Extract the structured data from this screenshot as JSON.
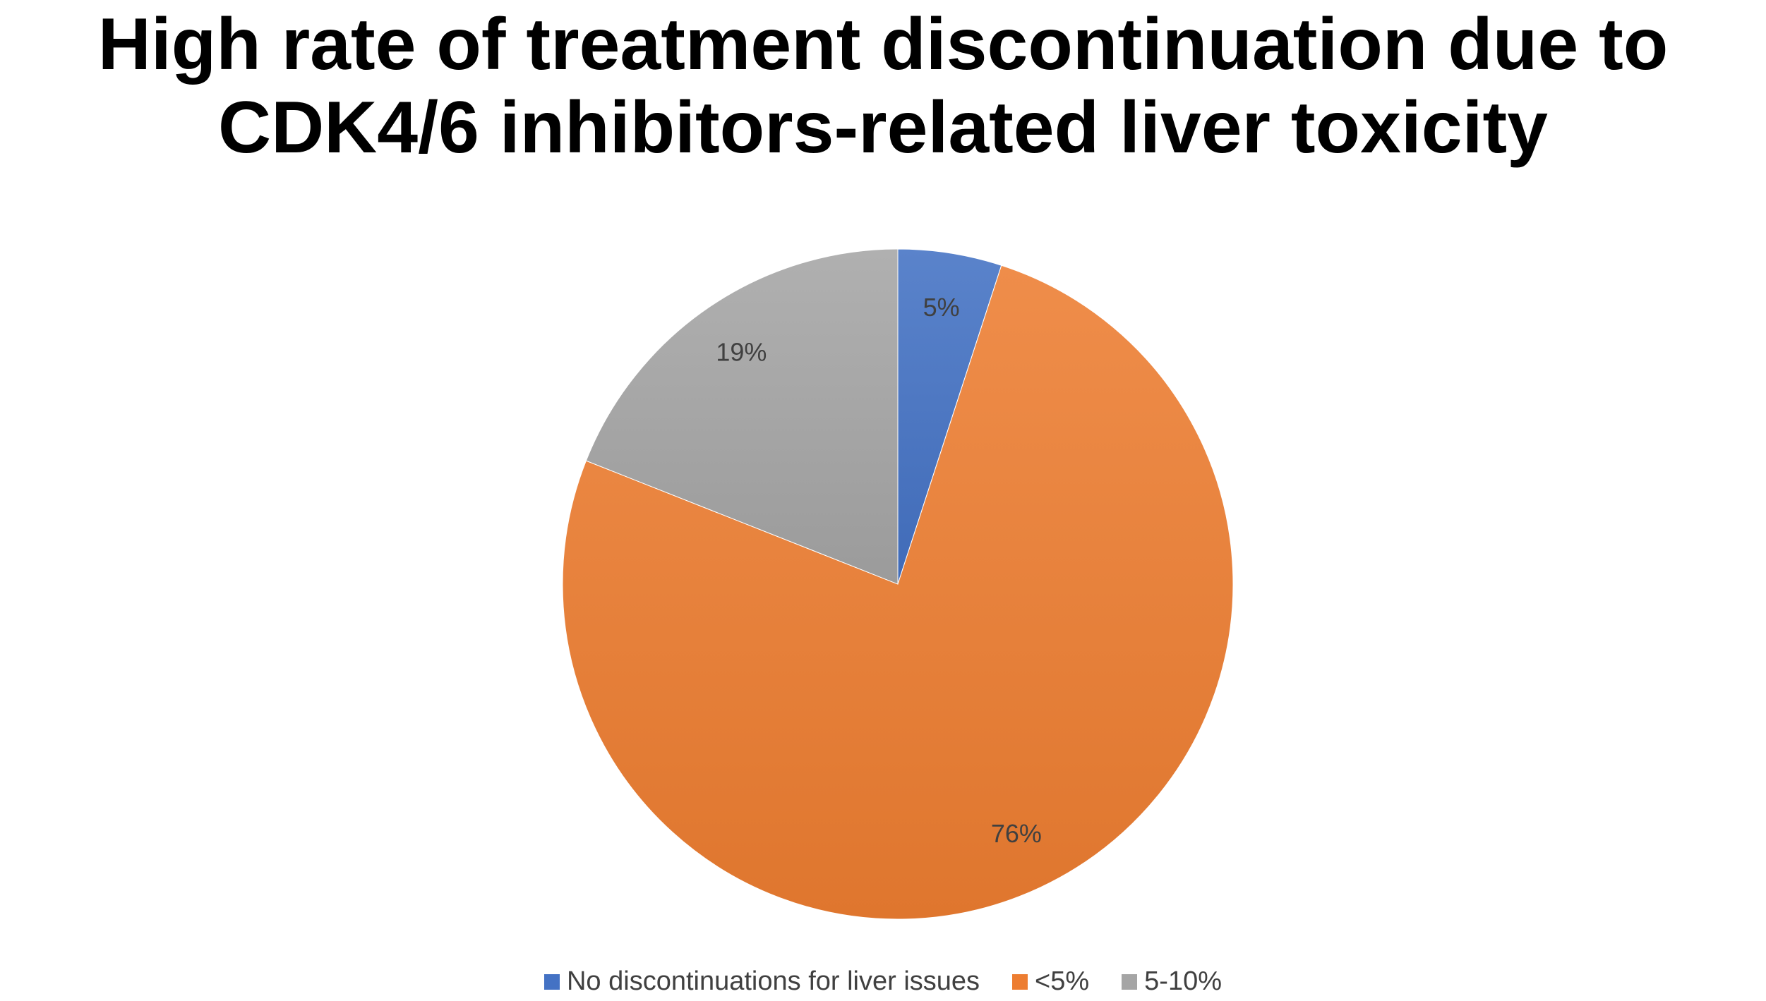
{
  "chart_data": {
    "type": "pie",
    "title": "High rate of treatment discontinuation due to CDK4/6 inhibitors-related liver toxicity",
    "title_lines": [
      "High rate of treatment discontinuation due to",
      "CDK4/6 inhibitors-related liver toxicity"
    ],
    "categories": [
      "No discontinuations for liver issues",
      "<5%",
      "5-10%"
    ],
    "values": [
      5,
      76,
      19
    ],
    "data_labels": [
      "5%",
      "76%",
      "19%"
    ],
    "colors": [
      "#4472C4",
      "#ED7D31",
      "#A5A5A5"
    ],
    "start_angle_degrees": 0,
    "direction": "clockwise",
    "legend_position": "bottom"
  }
}
